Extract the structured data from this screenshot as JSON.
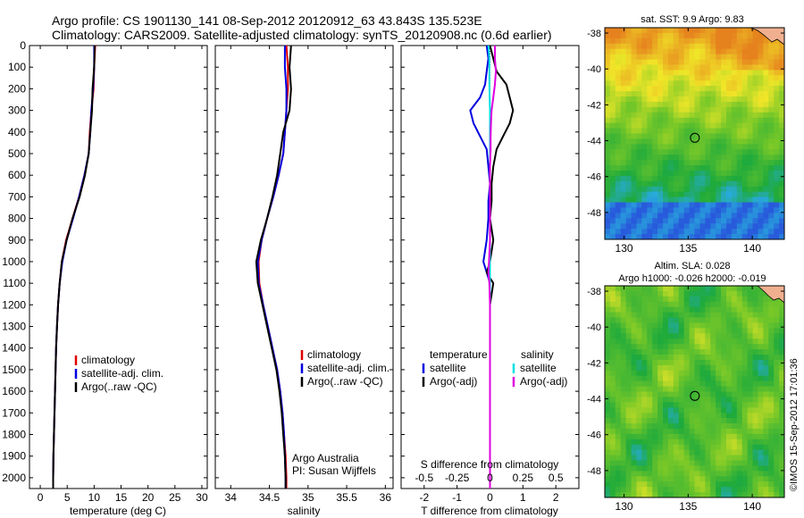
{
  "header": {
    "line1": "Argo profile: CS 1901130_141 08-Sep-2012 20120912_63 43.843S 135.523E",
    "line2": "Climatology: CARS2009. Satellite-adjusted climatology: synTS_20120908.nc (0.6d earlier)"
  },
  "colors": {
    "climatology": "#e00000",
    "satellite": "#0000e0",
    "argo": "#000000",
    "sat_salinity": "#00e0e0",
    "argo_salinity": "#e000e0"
  },
  "chart_data": [
    {
      "type": "line",
      "name": "temperature-profile",
      "xlabel": "temperature (deg C)",
      "xlim": [
        -2,
        31
      ],
      "xticks": [
        "0",
        "5",
        "10",
        "15",
        "20",
        "25",
        "30"
      ],
      "ylim": [
        0,
        2050
      ],
      "yticks": [
        "0",
        "100",
        "200",
        "300",
        "400",
        "500",
        "600",
        "700",
        "800",
        "900",
        "1000",
        "1100",
        "1200",
        "1300",
        "1400",
        "1500",
        "1600",
        "1700",
        "1800",
        "1900",
        "2000"
      ],
      "legend": [
        "climatology",
        "satellite-adj. clim.",
        "Argo(..raw -QC)"
      ],
      "legend_position": "bottom-right",
      "series": [
        {
          "name": "climatology",
          "color": "#e00000",
          "depth": [
            0,
            100,
            200,
            300,
            400,
            500,
            600,
            700,
            800,
            900,
            1000,
            1100,
            1200,
            1300,
            1400,
            1500,
            1600,
            1700,
            1800,
            1900,
            2000,
            2050
          ],
          "values": [
            10.2,
            10.0,
            9.9,
            9.5,
            9.2,
            9.0,
            8.2,
            7.2,
            6.0,
            4.8,
            4.0,
            3.6,
            3.3,
            3.1,
            2.95,
            2.85,
            2.75,
            2.65,
            2.55,
            2.45,
            2.4,
            2.4
          ]
        },
        {
          "name": "satellite-adj. clim.",
          "color": "#0000e0",
          "depth": [
            0,
            100,
            200,
            300,
            400,
            500,
            600,
            700,
            800,
            900,
            1000,
            1100,
            1200,
            1300,
            1400,
            1500,
            1600,
            1700,
            1800,
            1900,
            2000,
            2050
          ],
          "values": [
            10.0,
            10.0,
            9.8,
            9.5,
            9.3,
            9.0,
            8.2,
            7.2,
            6.1,
            4.9,
            4.1,
            3.6,
            3.3,
            3.1,
            2.95,
            2.85,
            2.75,
            2.65,
            2.55,
            2.45,
            2.4,
            2.4
          ]
        },
        {
          "name": "Argo(..raw -QC)",
          "color": "#000000",
          "depth": [
            0,
            100,
            200,
            300,
            400,
            500,
            600,
            700,
            800,
            900,
            1000,
            1100,
            1200,
            1300,
            1400,
            1500,
            1600,
            1700,
            1800,
            1900,
            2000,
            2050
          ],
          "values": [
            10.1,
            10.0,
            9.7,
            9.6,
            9.3,
            9.0,
            8.3,
            7.3,
            6.0,
            4.9,
            4.0,
            3.6,
            3.3,
            3.1,
            2.95,
            2.85,
            2.75,
            2.65,
            2.55,
            2.45,
            2.4,
            2.4
          ]
        }
      ]
    },
    {
      "type": "line",
      "name": "salinity-profile",
      "xlabel": "salinity",
      "xlim": [
        33.8,
        36.1
      ],
      "xticks": [
        "34",
        "34.5",
        "35",
        "35.5",
        "36"
      ],
      "ylim": [
        0,
        2050
      ],
      "legend": [
        "climatology",
        "satellite-adj. clim.",
        "Argo(..raw -QC)"
      ],
      "legend_position": "bottom-right",
      "annotation": [
        "Argo Australia",
        "PI: Susan Wijffels"
      ],
      "series": [
        {
          "name": "climatology",
          "color": "#e00000",
          "depth": [
            0,
            100,
            200,
            300,
            400,
            500,
            600,
            700,
            800,
            900,
            1000,
            1100,
            1200,
            1300,
            1400,
            1500,
            1600,
            1700,
            1800,
            1900,
            2000,
            2050
          ],
          "values": [
            34.72,
            34.74,
            34.74,
            34.72,
            34.7,
            34.68,
            34.62,
            34.55,
            34.47,
            34.4,
            34.36,
            34.37,
            34.42,
            34.48,
            34.54,
            34.6,
            34.64,
            34.67,
            34.69,
            34.71,
            34.72,
            34.72
          ]
        },
        {
          "name": "satellite-adj. clim.",
          "color": "#0000e0",
          "depth": [
            0,
            100,
            200,
            300,
            400,
            500,
            600,
            700,
            800,
            900,
            1000,
            1100,
            1200,
            1300,
            1400,
            1500,
            1600,
            1700,
            1800,
            1900,
            2000,
            2050
          ],
          "values": [
            34.7,
            34.7,
            34.72,
            34.72,
            34.7,
            34.68,
            34.62,
            34.55,
            34.47,
            34.4,
            34.35,
            34.36,
            34.42,
            34.48,
            34.54,
            34.6,
            34.64,
            34.67,
            34.69,
            34.7,
            34.71,
            34.71
          ]
        },
        {
          "name": "Argo(..raw -QC)",
          "color": "#000000",
          "depth": [
            0,
            100,
            200,
            300,
            400,
            500,
            600,
            700,
            800,
            900,
            1000,
            1100,
            1200,
            1300,
            1400,
            1500,
            1600,
            1700,
            1800,
            1900,
            2000,
            2050
          ],
          "values": [
            34.78,
            34.76,
            34.78,
            34.76,
            34.68,
            34.64,
            34.6,
            34.54,
            34.47,
            34.39,
            34.33,
            34.35,
            34.41,
            34.47,
            34.53,
            34.59,
            34.63,
            34.66,
            34.68,
            34.7,
            34.71,
            34.71
          ]
        }
      ]
    },
    {
      "type": "line",
      "name": "difference-profile",
      "xlabel": "T difference from climatology",
      "xlim": [
        -2.7,
        2.7
      ],
      "xticks": [
        "-2",
        "-1",
        "0",
        "1",
        "2"
      ],
      "top_axis_label": "S difference from climatology",
      "top_ticks": [
        "-0.5",
        "-0.25",
        "0",
        "0.25",
        "0.5"
      ],
      "ylim": [
        0,
        2050
      ],
      "legend_titles": [
        "temperature",
        "salinity"
      ],
      "legend": [
        "satellite",
        "Argo(-adj)",
        "satellite",
        "Argo(-adj)"
      ],
      "legend_position": "bottom",
      "series": [
        {
          "name": "satellite",
          "color": "#0000e0",
          "depth": [
            0,
            60,
            120,
            180,
            240,
            300,
            360,
            420,
            480,
            560,
            640,
            720,
            800,
            900,
            1000,
            1050,
            1100,
            1200,
            1400,
            1600,
            1800,
            2000,
            2050
          ],
          "values": [
            -0.1,
            -0.05,
            -0.1,
            -0.15,
            -0.3,
            -0.6,
            -0.5,
            -0.3,
            -0.1,
            -0.05,
            0.0,
            -0.05,
            -0.05,
            -0.1,
            -0.2,
            -0.1,
            0.0,
            0.0,
            0.0,
            0.0,
            0.0,
            0.0,
            0.0
          ]
        },
        {
          "name": "Argo(-adj)",
          "color": "#000000",
          "depth": [
            0,
            60,
            120,
            180,
            240,
            300,
            360,
            420,
            480,
            560,
            640,
            720,
            800,
            900,
            1000,
            1050,
            1100,
            1200,
            1400,
            1600,
            1800,
            2000,
            2050
          ],
          "values": [
            0.0,
            0.1,
            0.2,
            0.5,
            0.6,
            0.7,
            0.6,
            0.4,
            0.2,
            0.1,
            0.05,
            0.05,
            0.0,
            0.1,
            0.0,
            -0.1,
            0.1,
            0.0,
            0.0,
            0.0,
            0.0,
            0.0,
            0.0
          ]
        },
        {
          "name": "satellite",
          "color": "#00e0e0",
          "depth": [
            0,
            60,
            120,
            180,
            240,
            300,
            360,
            420,
            480,
            560,
            640,
            720,
            800,
            900,
            1000,
            1050,
            1100,
            1200,
            1400,
            1600,
            1800,
            2000,
            2050
          ],
          "values": [
            -0.05,
            -0.02,
            -0.02,
            -0.02,
            -0.01,
            0.0,
            0.0,
            0.0,
            0.0,
            0.0,
            0.0,
            0.0,
            0.0,
            0.0,
            0.0,
            0.0,
            0.0,
            0.0,
            0.0,
            0.0,
            0.0,
            0.0,
            0.0
          ]
        },
        {
          "name": "Argo(-adj)",
          "color": "#e000e0",
          "depth": [
            0,
            60,
            120,
            180,
            240,
            300,
            360,
            420,
            480,
            560,
            640,
            720,
            800,
            900,
            1000,
            1050,
            1100,
            1200,
            1400,
            1600,
            1800,
            2000,
            2050
          ],
          "values": [
            0.15,
            0.15,
            0.18,
            0.15,
            0.1,
            0.05,
            0.03,
            0.02,
            0.02,
            0.0,
            0.0,
            0.0,
            0.0,
            0.0,
            -0.03,
            -0.05,
            -0.02,
            0.0,
            0.0,
            0.0,
            0.0,
            0.0,
            0.0
          ]
        }
      ]
    },
    {
      "type": "heatmap",
      "name": "sst-map",
      "title": "sat. SST: 9.9  Argo: 9.83",
      "xticks": [
        "130",
        "135",
        "140"
      ],
      "yticks": [
        "-38",
        "-40",
        "-42",
        "-44",
        "-46",
        "-48"
      ],
      "xlim": [
        128.5,
        142.5
      ],
      "ylim": [
        -49.5,
        -37.7
      ],
      "marker": [
        135.52,
        -43.84
      ]
    },
    {
      "type": "heatmap",
      "name": "sla-map",
      "title_lines": [
        "Altim. SLA: 0.028",
        "Argo h1000: -0.026 h2000: -0.019"
      ],
      "xticks": [
        "130",
        "135",
        "140"
      ],
      "yticks": [
        "-38",
        "-40",
        "-42",
        "-44",
        "-46",
        "-48"
      ],
      "xlim": [
        128.5,
        142.5
      ],
      "ylim": [
        -49.5,
        -37.7
      ],
      "marker": [
        135.52,
        -43.84
      ]
    }
  ],
  "footer": {
    "stamp": "©IMOS 15-Sep-2012 17:01:36"
  }
}
